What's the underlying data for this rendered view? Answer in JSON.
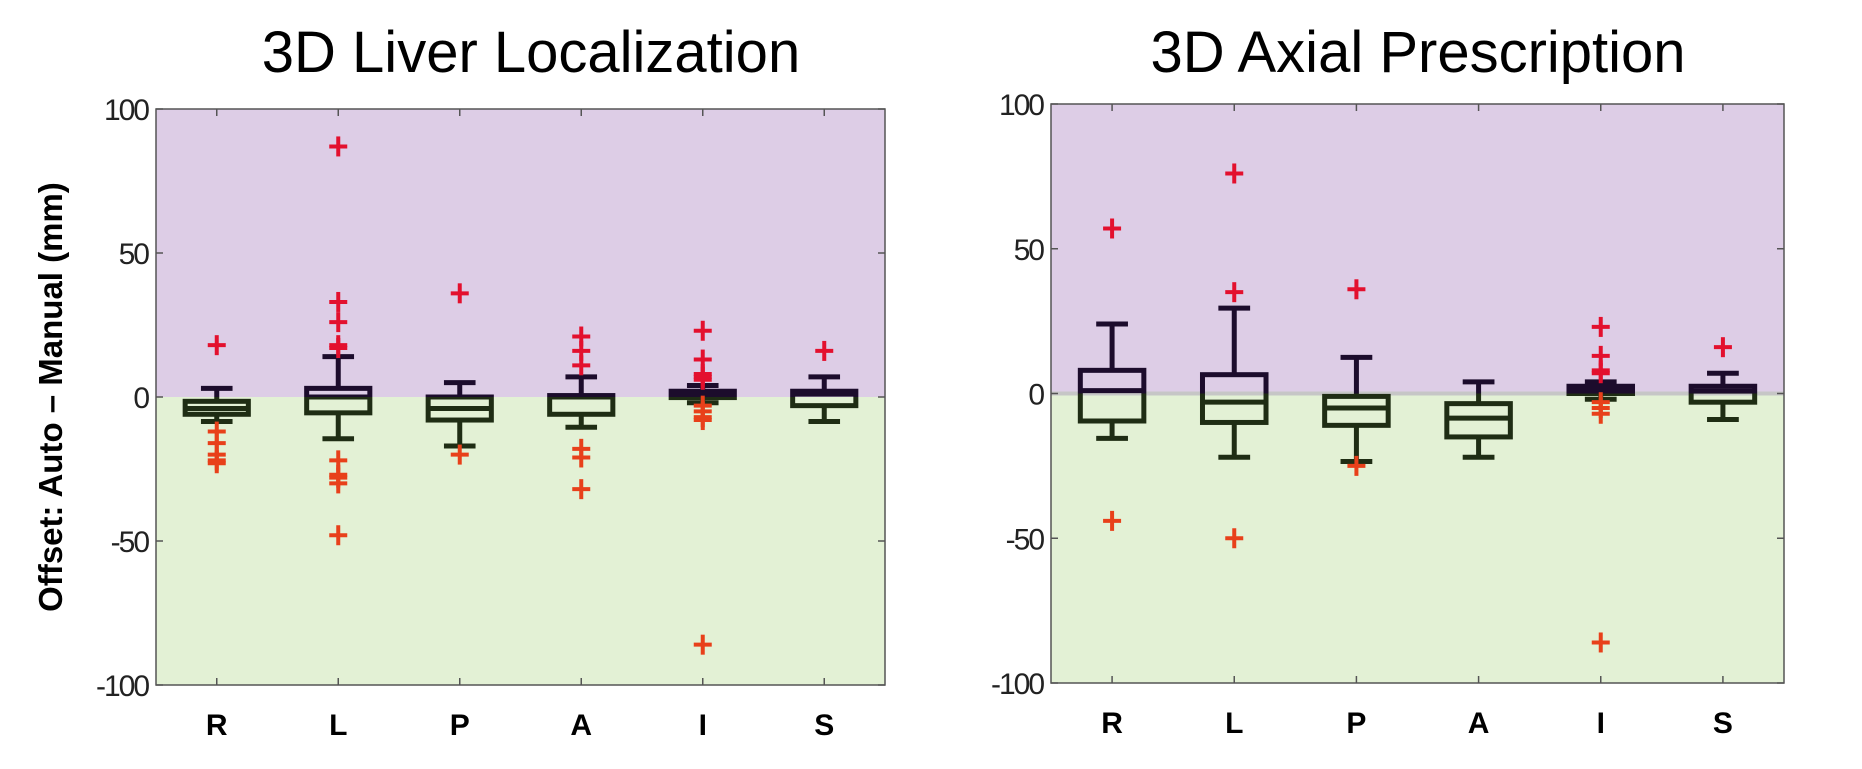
{
  "ylabel": "Offset: Auto – Manual (mm)",
  "colors": {
    "positive_region": "#ddcde6",
    "negative_region": "#e3f1d5",
    "box_positive": "#1c0c2c",
    "box_negative": "#1f2d14",
    "outlier_positive": "#e3102e",
    "outlier_negative": "#e8401a"
  },
  "chart_data": [
    {
      "type": "box",
      "title": "3D Liver Localization",
      "ylabel": "Offset: Auto – Manual (mm)",
      "ylim": [
        -100,
        100
      ],
      "yticks": [
        100,
        50,
        0,
        -50,
        -100
      ],
      "categories": [
        "R",
        "L",
        "P",
        "A",
        "I",
        "S"
      ],
      "boxes": [
        {
          "q1": -6,
          "median": -4,
          "q3": -1.5,
          "whisker_low": -8.5,
          "whisker_high": 3,
          "outliers": [
            18,
            -12,
            -16,
            -20,
            -22,
            -23
          ]
        },
        {
          "q1": -5.5,
          "median": 0,
          "q3": 3,
          "whisker_low": -14.5,
          "whisker_high": 14,
          "outliers": [
            87,
            33,
            26,
            18,
            17,
            -22,
            -27,
            -28,
            -30,
            -48
          ]
        },
        {
          "q1": -8,
          "median": -4,
          "q3": 0,
          "whisker_low": -17,
          "whisker_high": 5,
          "outliers": [
            36,
            -20
          ]
        },
        {
          "q1": -6,
          "median": 0,
          "q3": 0.5,
          "whisker_low": -10.5,
          "whisker_high": 7,
          "outliers": [
            21,
            16,
            11,
            -18,
            -21,
            -32
          ]
        },
        {
          "q1": -0.2,
          "median": 1,
          "q3": 2,
          "whisker_low": -2,
          "whisker_high": 4,
          "outliers": [
            23,
            13,
            8,
            7,
            6,
            -3,
            -5,
            -7,
            -8,
            -86
          ]
        },
        {
          "q1": -3,
          "median": 1,
          "q3": 2,
          "whisker_low": -8.5,
          "whisker_high": 7,
          "outliers": [
            16
          ]
        }
      ]
    },
    {
      "type": "box",
      "title": "3D Axial Prescription",
      "ylim": [
        -100,
        100
      ],
      "yticks": [
        100,
        50,
        0,
        -50,
        -100
      ],
      "categories": [
        "R",
        "L",
        "P",
        "A",
        "I",
        "S"
      ],
      "boxes": [
        {
          "q1": -9.5,
          "median": 1,
          "q3": 8,
          "whisker_low": -15.5,
          "whisker_high": 24,
          "outliers": [
            57,
            -44
          ]
        },
        {
          "q1": -10,
          "median": -3,
          "q3": 6.5,
          "whisker_low": -22,
          "whisker_high": 29.5,
          "outliers": [
            76,
            35,
            -50
          ]
        },
        {
          "q1": -11,
          "median": -5,
          "q3": -1,
          "whisker_low": -23.5,
          "whisker_high": 12.5,
          "outliers": [
            36,
            -25
          ]
        },
        {
          "q1": -15,
          "median": -8.5,
          "q3": -3.5,
          "whisker_low": -22,
          "whisker_high": 4,
          "outliers": []
        },
        {
          "q1": 0,
          "median": 1,
          "q3": 2.5,
          "whisker_low": -2,
          "whisker_high": 4,
          "outliers": [
            23,
            13,
            8,
            7,
            -3,
            -5,
            -7,
            -86
          ]
        },
        {
          "q1": -3,
          "median": 0.8,
          "q3": 2.5,
          "whisker_low": -9,
          "whisker_high": 7,
          "outliers": [
            16
          ]
        }
      ]
    }
  ]
}
